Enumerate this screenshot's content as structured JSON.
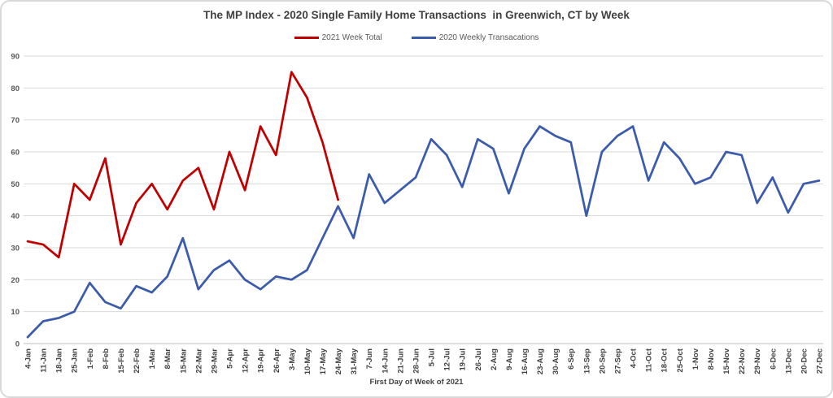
{
  "title": "The MP Index - 2020 Single Family Home Transactions  in Greenwich, CT by Week",
  "chart_data": {
    "type": "line",
    "x_axis_title": "First Day of Week of 2021",
    "categories": [
      "4-Jan",
      "11-Jan",
      "18-Jan",
      "25-Jan",
      "1-Feb",
      "8-Feb",
      "15-Feb",
      "22-Feb",
      "1-Mar",
      "8-Mar",
      "15-Mar",
      "22-Mar",
      "29-Mar",
      "5-Apr",
      "12-Apr",
      "19-Apr",
      "26-Apr",
      "3-May",
      "10-May",
      "17-May",
      "24-May",
      "31-May",
      "7-Jun",
      "14-Jun",
      "21-Jun",
      "28-Jun",
      "5-Jul",
      "12-Jul",
      "19-Jul",
      "26-Jul",
      "2-Aug",
      "9-Aug",
      "16-Aug",
      "23-Aug",
      "30-Aug",
      "6-Sep",
      "13-Sep",
      "20-Sep",
      "27-Sep",
      "4-Oct",
      "11-Oct",
      "18-Oct",
      "25-Oct",
      "1-Nov",
      "8-Nov",
      "15-Nov",
      "22-Nov",
      "29-Nov",
      "6-Dec",
      "13-Dec",
      "20-Dec",
      "27-Dec"
    ],
    "series": [
      {
        "name": "2021 Week Total",
        "color": "#c00000",
        "values": [
          32,
          31,
          27,
          50,
          45,
          58,
          31,
          44,
          50,
          42,
          51,
          55,
          42,
          60,
          48,
          68,
          59,
          85,
          77,
          63,
          45
        ]
      },
      {
        "name": "2020 Weekly Transacations",
        "color": "#3b5caa",
        "values": [
          2,
          7,
          8,
          10,
          19,
          13,
          11,
          18,
          16,
          21,
          33,
          17,
          23,
          26,
          20,
          17,
          21,
          20,
          23,
          33,
          43,
          33,
          53,
          44,
          48,
          52,
          64,
          59,
          49,
          64,
          61,
          47,
          61,
          68,
          65,
          63,
          40,
          60,
          65,
          68,
          51,
          63,
          58,
          50,
          52,
          60,
          59,
          44,
          52,
          41,
          50,
          51
        ]
      }
    ],
    "y_ticks": [
      0,
      10,
      20,
      30,
      40,
      50,
      60,
      70,
      80,
      90
    ],
    "ylim": [
      0,
      90
    ],
    "grid": true,
    "legend_position": "top",
    "x_tick_rotation": -90
  },
  "colors": {
    "gridline": "#d9d9d9",
    "axis_line": "#bfbfbf",
    "tick_label": "#404040",
    "y_tick_label": "#595959",
    "title_text": "#404040"
  }
}
